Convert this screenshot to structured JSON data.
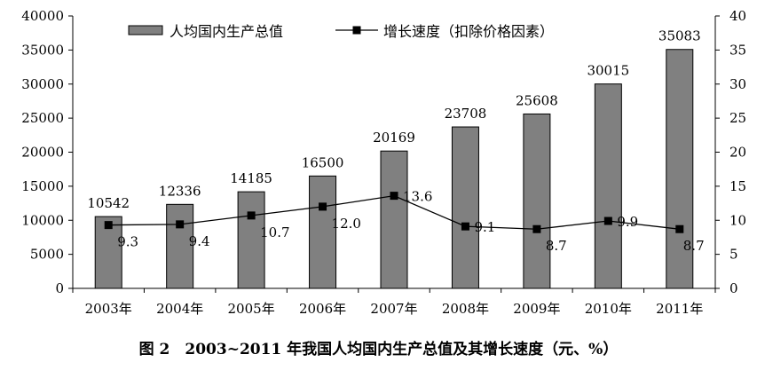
{
  "caption": "图 2　2003~2011 年我国人均国内生产总值及其增长速度（元、%）",
  "chart_data": {
    "type": "bar",
    "title": "",
    "categories": [
      "2003年",
      "2004年",
      "2005年",
      "2006年",
      "2007年",
      "2008年",
      "2009年",
      "2010年",
      "2011年"
    ],
    "series": [
      {
        "name": "人均国内生产总值",
        "type": "bar",
        "axis": "left",
        "color": "#808080",
        "values": [
          10542,
          12336,
          14185,
          16500,
          20169,
          23708,
          25608,
          30015,
          35083
        ]
      },
      {
        "name": "增长速度（扣除价格因素）",
        "type": "line",
        "axis": "right",
        "color": "#000000",
        "values": [
          9.3,
          9.4,
          10.7,
          12.0,
          13.6,
          9.1,
          8.7,
          9.9,
          8.7
        ]
      }
    ],
    "y_left": {
      "min": 0,
      "max": 40000,
      "step": 5000,
      "ticks": [
        "0",
        "5000",
        "10000",
        "15000",
        "20000",
        "25000",
        "30000",
        "35000",
        "40000"
      ]
    },
    "y_right": {
      "min": 0,
      "max": 40,
      "step": 5,
      "ticks": [
        "0",
        "5",
        "10",
        "15",
        "20",
        "25",
        "30",
        "35",
        "40"
      ]
    },
    "bar_labels": [
      "10542",
      "12336",
      "14185",
      "16500",
      "20169",
      "23708",
      "25608",
      "30015",
      "35083"
    ],
    "line_labels": [
      "9.3",
      "9.4",
      "10.7",
      "12.0",
      "13.6",
      "9.1",
      "8.7",
      "9.9",
      "8.7"
    ],
    "legend_position": "top",
    "grid": false
  }
}
